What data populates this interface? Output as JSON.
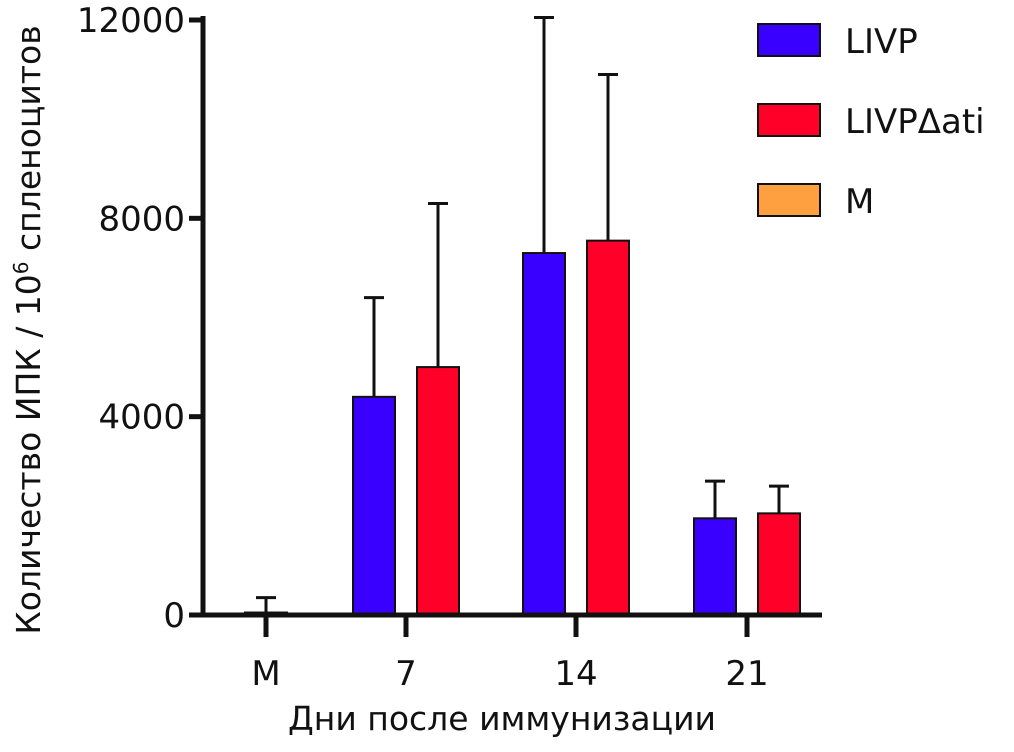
{
  "chart_data": {
    "type": "bar",
    "title": "",
    "xlabel": "Дни после иммунизации",
    "ylabel_prefix": "Количество ИПК / 10",
    "ylabel_sup": "6",
    "ylabel_suffix": " спленоцитов",
    "ylim": [
      0,
      12000
    ],
    "yticks": [
      0,
      4000,
      8000,
      12000
    ],
    "ytick_labels": [
      "0",
      "4000",
      "8000",
      "12000"
    ],
    "categories": [
      "M",
      "7",
      "14",
      "21"
    ],
    "series": [
      {
        "name": "LIVP",
        "color": "#3a00ff",
        "values": [
          null,
          4400,
          7300,
          1950
        ],
        "errors": [
          null,
          2000,
          4750,
          750
        ]
      },
      {
        "name": "LIVPΔati",
        "color": "#ff0028",
        "values": [
          null,
          5000,
          7550,
          2050
        ],
        "errors": [
          null,
          3300,
          3350,
          550
        ]
      },
      {
        "name": "M",
        "color": "#ffa040",
        "values": [
          50,
          null,
          null,
          null
        ],
        "errors": [
          300,
          null,
          null,
          null
        ]
      }
    ],
    "legend_position": "top-right",
    "grid": false
  }
}
